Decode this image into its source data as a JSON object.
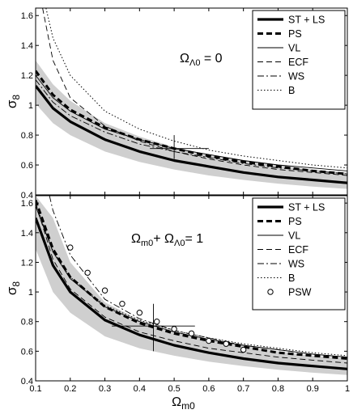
{
  "chart_data": [
    {
      "type": "line",
      "panel": "top",
      "annotation": {
        "text": "Ω",
        "sub": "Λ0",
        "rest": " = 0"
      },
      "ylabel": {
        "text": "σ",
        "sub": "8"
      },
      "xlabel": "",
      "xlim": [
        0.1,
        1.0
      ],
      "ylim": [
        0.4,
        1.65
      ],
      "yticks": [
        "0.4",
        "0.6",
        "0.8",
        "1",
        "1.2",
        "1.4",
        "1.6"
      ],
      "ytick_values": [
        0.4,
        0.6,
        0.8,
        1.0,
        1.2,
        1.4,
        1.6
      ],
      "xticks": [],
      "legend_position": "top-right",
      "band": {
        "x": [
          0.1,
          0.15,
          0.2,
          0.3,
          0.4,
          0.5,
          0.6,
          0.7,
          0.8,
          0.9,
          1.0
        ],
        "lower": [
          1.01,
          0.88,
          0.8,
          0.69,
          0.62,
          0.57,
          0.53,
          0.5,
          0.475,
          0.455,
          0.44
        ],
        "upper": [
          1.3,
          1.14,
          1.03,
          0.88,
          0.79,
          0.72,
          0.67,
          0.63,
          0.6,
          0.57,
          0.55
        ]
      },
      "series": [
        {
          "name": "ST + LS",
          "style": "solid-thick",
          "x": [
            0.1,
            0.15,
            0.2,
            0.3,
            0.4,
            0.5,
            0.6,
            0.7,
            0.8,
            0.9,
            1.0
          ],
          "y": [
            1.13,
            0.98,
            0.89,
            0.77,
            0.69,
            0.63,
            0.59,
            0.55,
            0.52,
            0.5,
            0.48
          ]
        },
        {
          "name": "PS",
          "style": "dashed-thick",
          "x": [
            0.1,
            0.15,
            0.2,
            0.3,
            0.4,
            0.5,
            0.6,
            0.7,
            0.8,
            0.9,
            1.0
          ],
          "y": [
            1.23,
            1.07,
            0.97,
            0.85,
            0.77,
            0.71,
            0.66,
            0.62,
            0.59,
            0.56,
            0.54
          ]
        },
        {
          "name": "VL",
          "style": "solid-thin",
          "x": [
            0.1,
            0.15,
            0.2,
            0.3,
            0.4,
            0.5,
            0.6,
            0.7,
            0.8,
            0.9,
            1.0
          ],
          "y": [
            1.2,
            1.05,
            0.96,
            0.84,
            0.77,
            0.71,
            0.67,
            0.63,
            0.6,
            0.58,
            0.56
          ]
        },
        {
          "name": "ECF",
          "style": "dashed-thin",
          "x": [
            0.12,
            0.15,
            0.2,
            0.3,
            0.4,
            0.5,
            0.6,
            0.7,
            0.8,
            0.9,
            1.0
          ],
          "y": [
            1.65,
            1.3,
            1.05,
            0.86,
            0.76,
            0.69,
            0.64,
            0.6,
            0.57,
            0.55,
            0.53
          ]
        },
        {
          "name": "WS",
          "style": "dashdot",
          "x": [
            0.1,
            0.15,
            0.2,
            0.3,
            0.4,
            0.5,
            0.6,
            0.7,
            0.8,
            0.9,
            1.0
          ],
          "y": [
            1.17,
            1.02,
            0.93,
            0.82,
            0.74,
            0.69,
            0.65,
            0.61,
            0.58,
            0.56,
            0.54
          ]
        },
        {
          "name": "B",
          "style": "dotted",
          "x": [
            0.13,
            0.15,
            0.2,
            0.3,
            0.4,
            0.5,
            0.6,
            0.7,
            0.8,
            0.9,
            1.0
          ],
          "y": [
            1.65,
            1.45,
            1.2,
            0.96,
            0.84,
            0.76,
            0.7,
            0.66,
            0.63,
            0.6,
            0.58
          ]
        }
      ],
      "errorbar": {
        "x": 0.5,
        "y": 0.71,
        "xerr": [
          0.43,
          0.6
        ],
        "yerr": [
          0.64,
          0.8
        ]
      }
    },
    {
      "type": "line",
      "panel": "bottom",
      "annotation": {
        "text": "Ω",
        "sub": "m0",
        "mid": "+ Ω",
        "sub2": "Λ0",
        "rest": "= 1"
      },
      "ylabel": {
        "text": "σ",
        "sub": "8"
      },
      "xlabel": {
        "text": "Ω",
        "sub": "m0"
      },
      "xlim": [
        0.1,
        1.0
      ],
      "ylim": [
        0.4,
        1.65
      ],
      "yticks": [
        "0.4",
        "0.6",
        "0.8",
        "1",
        "1.2",
        "1.4",
        "1.6"
      ],
      "ytick_values": [
        0.4,
        0.6,
        0.8,
        1.0,
        1.2,
        1.4,
        1.6
      ],
      "xticks": [
        "0.1",
        "0.2",
        "0.3",
        "0.4",
        "0.5",
        "0.6",
        "0.7",
        "0.8",
        "0.9",
        "1"
      ],
      "xtick_values": [
        0.1,
        0.2,
        0.3,
        0.4,
        0.5,
        0.6,
        0.7,
        0.8,
        0.9,
        1.0
      ],
      "legend_position": "top-right",
      "band": {
        "x": [
          0.1,
          0.15,
          0.2,
          0.3,
          0.4,
          0.5,
          0.6,
          0.7,
          0.8,
          0.9,
          1.0
        ],
        "lower": [
          1.29,
          1.0,
          0.86,
          0.7,
          0.62,
          0.57,
          0.53,
          0.5,
          0.475,
          0.455,
          0.44
        ],
        "upper": [
          1.65,
          1.5,
          1.2,
          0.93,
          0.81,
          0.73,
          0.68,
          0.64,
          0.6,
          0.57,
          0.55
        ]
      },
      "series": [
        {
          "name": "ST + LS",
          "style": "solid-thick",
          "x": [
            0.1,
            0.15,
            0.2,
            0.3,
            0.4,
            0.5,
            0.6,
            0.7,
            0.8,
            0.9,
            1.0
          ],
          "y": [
            1.5,
            1.18,
            1.0,
            0.81,
            0.71,
            0.64,
            0.59,
            0.55,
            0.52,
            0.5,
            0.48
          ]
        },
        {
          "name": "PS",
          "style": "dashed-thick",
          "x": [
            0.1,
            0.15,
            0.2,
            0.3,
            0.4,
            0.5,
            0.6,
            0.7,
            0.8,
            0.9,
            1.0
          ],
          "y": [
            1.62,
            1.29,
            1.1,
            0.9,
            0.79,
            0.72,
            0.67,
            0.63,
            0.59,
            0.57,
            0.55
          ]
        },
        {
          "name": "VL",
          "style": "solid-thin",
          "x": [
            0.1,
            0.15,
            0.2,
            0.3,
            0.4,
            0.5,
            0.6,
            0.7,
            0.8,
            0.9,
            1.0
          ],
          "y": [
            1.58,
            1.27,
            1.09,
            0.9,
            0.8,
            0.73,
            0.68,
            0.64,
            0.61,
            0.58,
            0.56
          ]
        },
        {
          "name": "ECF",
          "style": "dashed-thin",
          "x": [
            0.1,
            0.15,
            0.2,
            0.3,
            0.4,
            0.5,
            0.6,
            0.7,
            0.8,
            0.9,
            1.0
          ],
          "y": [
            1.6,
            1.22,
            1.02,
            0.83,
            0.73,
            0.67,
            0.62,
            0.59,
            0.56,
            0.54,
            0.52
          ]
        },
        {
          "name": "WS",
          "style": "dashdot",
          "x": [
            0.14,
            0.15,
            0.2,
            0.3,
            0.4,
            0.5,
            0.6,
            0.7,
            0.8,
            0.9,
            1.0
          ],
          "y": [
            1.65,
            1.55,
            1.25,
            0.95,
            0.82,
            0.74,
            0.69,
            0.64,
            0.61,
            0.58,
            0.56
          ]
        },
        {
          "name": "B",
          "style": "dotted",
          "x": [
            0.1,
            0.15,
            0.2,
            0.3,
            0.4,
            0.5,
            0.6,
            0.7,
            0.8,
            0.9,
            1.0
          ],
          "y": [
            1.6,
            1.28,
            1.1,
            0.91,
            0.81,
            0.74,
            0.69,
            0.65,
            0.62,
            0.59,
            0.57
          ]
        },
        {
          "name": "PSW",
          "style": "circles",
          "x": [
            0.2,
            0.25,
            0.3,
            0.35,
            0.4,
            0.45,
            0.5,
            0.55,
            0.6,
            0.65,
            0.7
          ],
          "y": [
            1.3,
            1.13,
            1.01,
            0.92,
            0.86,
            0.8,
            0.75,
            0.72,
            0.67,
            0.65,
            0.61
          ]
        }
      ],
      "errorbar": {
        "x": 0.44,
        "y": 0.77,
        "xerr": [
          0.32,
          0.56
        ],
        "yerr": [
          0.6,
          0.92
        ]
      }
    }
  ]
}
